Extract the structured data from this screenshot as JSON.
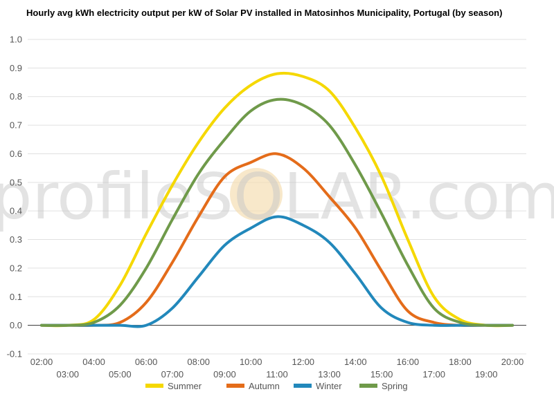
{
  "watermark": {
    "text": "profileSOLAR.com",
    "sun_color": "#f5deb3"
  },
  "chart_data": {
    "type": "line",
    "title": "Hourly avg kWh electricity output per kW of Solar PV installed in Matosinhos Municipality, Portugal (by season)",
    "xlabel": "",
    "ylabel": "",
    "ylim": [
      -0.1,
      1.0
    ],
    "yticks": [
      "-0.1",
      "0.0",
      "0.1",
      "0.2",
      "0.3",
      "0.4",
      "0.5",
      "0.6",
      "0.7",
      "0.8",
      "0.9",
      "1.0"
    ],
    "x": [
      "02:00",
      "03:00",
      "04:00",
      "05:00",
      "06:00",
      "07:00",
      "08:00",
      "09:00",
      "10:00",
      "11:00",
      "12:00",
      "13:00",
      "14:00",
      "15:00",
      "16:00",
      "17:00",
      "18:00",
      "19:00",
      "20:00"
    ],
    "grid": true,
    "legend": "bottom",
    "series": [
      {
        "name": "Summer",
        "color": "#f5d800",
        "values": [
          0.0,
          0.0,
          0.02,
          0.14,
          0.32,
          0.49,
          0.64,
          0.76,
          0.84,
          0.88,
          0.87,
          0.82,
          0.69,
          0.52,
          0.3,
          0.1,
          0.02,
          0.0,
          0.0
        ]
      },
      {
        "name": "Autumn",
        "color": "#e46c1a",
        "values": [
          0.0,
          0.0,
          0.0,
          0.01,
          0.08,
          0.22,
          0.38,
          0.52,
          0.57,
          0.6,
          0.55,
          0.45,
          0.34,
          0.19,
          0.05,
          0.01,
          0.0,
          0.0,
          0.0
        ]
      },
      {
        "name": "Winter",
        "color": "#2288bb",
        "values": [
          0.0,
          0.0,
          0.0,
          0.0,
          0.0,
          0.06,
          0.17,
          0.28,
          0.34,
          0.38,
          0.35,
          0.29,
          0.18,
          0.06,
          0.01,
          0.0,
          0.0,
          0.0,
          0.0
        ]
      },
      {
        "name": "Spring",
        "color": "#6f9a4a",
        "values": [
          0.0,
          0.0,
          0.01,
          0.07,
          0.2,
          0.37,
          0.53,
          0.65,
          0.75,
          0.79,
          0.77,
          0.7,
          0.56,
          0.39,
          0.21,
          0.06,
          0.01,
          0.0,
          0.0
        ]
      }
    ]
  }
}
